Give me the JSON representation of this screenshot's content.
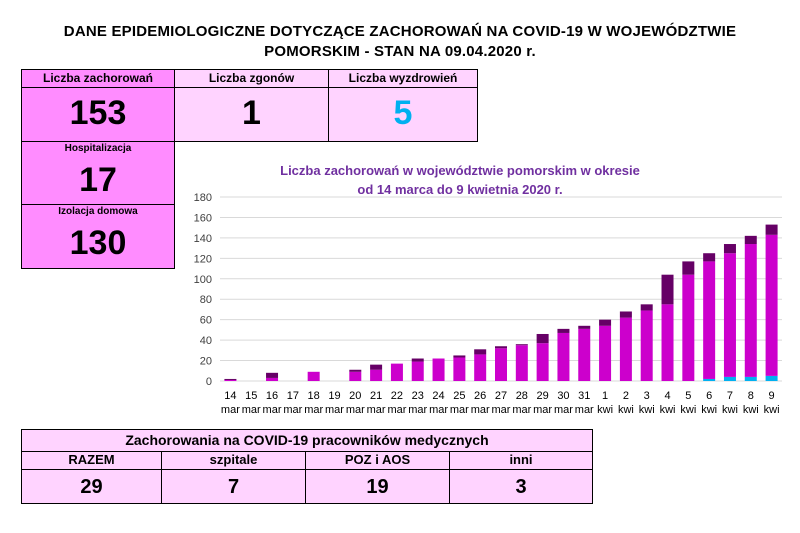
{
  "title_line1": "DANE EPIDEMIOLOGICZNE DOTYCZĄCE ZACHOROWAŃ NA COVID-19 W WOJEWÓDZTWIE",
  "title_line2": "POMORSKIM - STAN NA 09.04.2020 r.",
  "stats": {
    "cases_label": "Liczba zachorowań",
    "cases_value": "153",
    "deaths_label": "Liczba zgonów",
    "deaths_value": "1",
    "recovered_label": "Liczba wyzdrowień",
    "recovered_value": "5",
    "hospital_label": "Hospitalizacja",
    "hospital_value": "17",
    "home_label": "Izolacja domowa",
    "home_value": "130"
  },
  "colors": {
    "dark_pink": "#ff8cff",
    "light_pink": "#ffd3ff",
    "recovered_blue": "#00b0f0",
    "bar_base": "#cc00cc",
    "bar_top": "#660066",
    "bar_recovered": "#00b0f0",
    "chart_title": "#7030a0"
  },
  "medical": {
    "title": "Zachorowania na COVID-19 pracowników medycznych",
    "headers": [
      "RAZEM",
      "szpitale",
      "POZ i AOS",
      "inni"
    ],
    "values": [
      "29",
      "7",
      "19",
      "3"
    ]
  },
  "chart_data": {
    "type": "bar",
    "stacked": true,
    "title": "Liczba zachorowań w województwie pomorskim w okresie od 14 marca do 9 kwietnia 2020 r.",
    "title_line1": "Liczba zachorowań w województwie pomorskim w okresie",
    "title_line2": "od 14 marca do 9 kwietnia 2020 r.",
    "categories": [
      "14 mar",
      "15 mar",
      "16 mar",
      "17 mar",
      "18 mar",
      "19 mar",
      "20 mar",
      "21 mar",
      "22 mar",
      "23 mar",
      "24 mar",
      "25 mar",
      "26 mar",
      "27 mar",
      "28 mar",
      "29 mar",
      "30 mar",
      "31 mar",
      "1 kwi",
      "2 kwi",
      "3 kwi",
      "4 kwi",
      "5 kwi",
      "6 kwi",
      "7 kwi",
      "8 kwi",
      "9 kwi"
    ],
    "tick_days": [
      "14",
      "15",
      "16",
      "17",
      "18",
      "19",
      "20",
      "21",
      "22",
      "23",
      "24",
      "25",
      "26",
      "27",
      "28",
      "29",
      "30",
      "31",
      "1",
      "2",
      "3",
      "4",
      "5",
      "6",
      "7",
      "8",
      "9"
    ],
    "tick_months": [
      "mar",
      "mar",
      "mar",
      "mar",
      "mar",
      "mar",
      "mar",
      "mar",
      "mar",
      "mar",
      "mar",
      "mar",
      "mar",
      "mar",
      "mar",
      "mar",
      "mar",
      "mar",
      "kwi",
      "kwi",
      "kwi",
      "kwi",
      "kwi",
      "kwi",
      "kwi",
      "kwi",
      "kwi"
    ],
    "series": [
      {
        "values": [
          0,
          0,
          0,
          0,
          0,
          0,
          0,
          0,
          0,
          0,
          0,
          0,
          0,
          0,
          0,
          0,
          0,
          0,
          0,
          0,
          0,
          0,
          0,
          2,
          4,
          4,
          5
        ]
      },
      {
        "values": [
          1,
          0,
          3,
          0,
          9,
          0,
          9,
          11,
          17,
          19,
          22,
          23,
          26,
          32,
          35,
          37,
          47,
          51,
          54,
          62,
          69,
          75,
          104,
          115,
          121,
          130,
          138
        ]
      },
      {
        "values": [
          1,
          0,
          5,
          0,
          0,
          0,
          2,
          5,
          0,
          3,
          0,
          2,
          5,
          2,
          1,
          9,
          4,
          3,
          6,
          6,
          6,
          29,
          13,
          8,
          9,
          8,
          10
        ]
      }
    ],
    "totals": [
      2,
      0,
      8,
      0,
      9,
      0,
      11,
      16,
      17,
      22,
      22,
      25,
      31,
      34,
      36,
      46,
      51,
      54,
      60,
      68,
      75,
      104,
      117,
      125,
      134,
      142,
      153
    ],
    "ylim": [
      0,
      180
    ],
    "yticks": [
      0,
      20,
      40,
      60,
      80,
      100,
      120,
      140,
      160,
      180
    ],
    "grid": true,
    "legend": "none"
  }
}
